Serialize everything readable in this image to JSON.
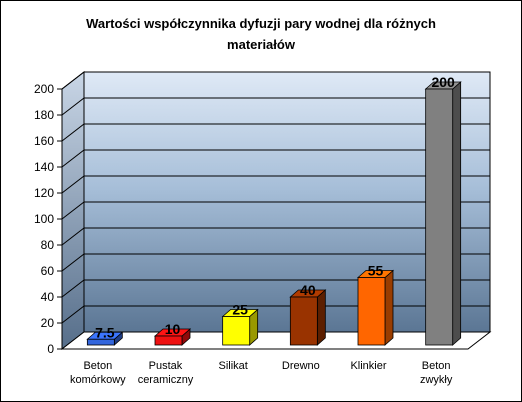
{
  "chart_data": {
    "type": "bar",
    "title_lines": [
      "Wartości współczynnika dyfuzji pary wodnej dla różnych",
      "materiałów"
    ],
    "categories": [
      [
        "Beton",
        "komórkowy"
      ],
      [
        "Pustak",
        "ceramiczny"
      ],
      [
        "Silikat"
      ],
      [
        "Drewno"
      ],
      [
        "Klinkier"
      ],
      [
        "Beton",
        "zwykły"
      ]
    ],
    "value_labels": [
      "7.5",
      "10",
      "25",
      "40",
      "55",
      "200"
    ],
    "values": [
      7.5,
      10,
      25,
      40,
      55,
      200
    ],
    "bar_colors": [
      "#3366dd",
      "#ee1111",
      "#ffff00",
      "#993300",
      "#ff6600",
      "#808080"
    ],
    "y_ticks": [
      "0",
      "20",
      "40",
      "60",
      "80",
      "100",
      "120",
      "140",
      "160",
      "180",
      "200"
    ],
    "ylim": [
      0,
      200
    ],
    "grid": true,
    "legend": "none"
  }
}
